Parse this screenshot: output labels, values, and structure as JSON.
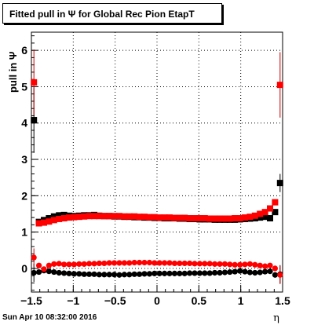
{
  "title": "Fitted pull in  Ψ  for Global Rec Pion EtapT",
  "timestamp": "Sun Apr 10 08:32:00 2016",
  "chart_data": {
    "type": "scatter",
    "xlabel": "η",
    "ylabel": "pull in  Ψ",
    "xlim": [
      -1.5,
      1.5
    ],
    "ylim": [
      -0.65,
      6.5
    ],
    "xticks": [
      "−1.5",
      "−1",
      "−0.5",
      "0",
      "0.5",
      "1",
      "1.5"
    ],
    "xtick_values": [
      -1.5,
      -1,
      -0.5,
      0,
      0.5,
      1,
      1.5
    ],
    "yticks": [
      "0",
      "1",
      "2",
      "3",
      "4",
      "5",
      "6"
    ],
    "ytick_values": [
      0,
      1,
      2,
      3,
      4,
      5,
      6
    ],
    "grid": true,
    "colors": {
      "black": "#000000",
      "red": "#ff0000",
      "error": "#cc0000"
    },
    "series": [
      {
        "marker": "square",
        "color": "#000000",
        "x": [
          -1.47,
          -1.41,
          -1.35,
          -1.29,
          -1.23,
          -1.17,
          -1.11,
          -1.05,
          -0.99,
          -0.93,
          -0.87,
          -0.81,
          -0.75,
          -0.69,
          -0.63,
          -0.57,
          -0.51,
          -0.45,
          -0.39,
          -0.33,
          -0.27,
          -0.21,
          -0.15,
          -0.09,
          -0.03,
          0.03,
          0.09,
          0.15,
          0.21,
          0.27,
          0.33,
          0.39,
          0.45,
          0.51,
          0.57,
          0.63,
          0.69,
          0.75,
          0.81,
          0.87,
          0.93,
          0.99,
          1.05,
          1.11,
          1.17,
          1.23,
          1.29,
          1.35,
          1.41,
          1.47
        ],
        "y": [
          4.08,
          1.28,
          1.33,
          1.38,
          1.43,
          1.46,
          1.47,
          1.45,
          1.44,
          1.45,
          1.46,
          1.46,
          1.47,
          1.45,
          1.44,
          1.44,
          1.43,
          1.43,
          1.42,
          1.42,
          1.41,
          1.41,
          1.4,
          1.4,
          1.39,
          1.39,
          1.38,
          1.38,
          1.38,
          1.37,
          1.37,
          1.36,
          1.36,
          1.35,
          1.35,
          1.35,
          1.34,
          1.34,
          1.34,
          1.34,
          1.34,
          1.35,
          1.36,
          1.37,
          1.38,
          1.4,
          1.42,
          1.38,
          1.55,
          2.35
        ]
      },
      {
        "marker": "square",
        "color": "#ff0000",
        "x": [
          -1.47,
          -1.41,
          -1.35,
          -1.29,
          -1.23,
          -1.17,
          -1.11,
          -1.05,
          -0.99,
          -0.93,
          -0.87,
          -0.81,
          -0.75,
          -0.69,
          -0.63,
          -0.57,
          -0.51,
          -0.45,
          -0.39,
          -0.33,
          -0.27,
          -0.21,
          -0.15,
          -0.09,
          -0.03,
          0.03,
          0.09,
          0.15,
          0.21,
          0.27,
          0.33,
          0.39,
          0.45,
          0.51,
          0.57,
          0.63,
          0.69,
          0.75,
          0.81,
          0.87,
          0.93,
          0.99,
          1.05,
          1.11,
          1.17,
          1.23,
          1.29,
          1.35,
          1.41,
          1.47
        ],
        "y": [
          5.12,
          1.24,
          1.26,
          1.29,
          1.33,
          1.36,
          1.38,
          1.4,
          1.41,
          1.42,
          1.43,
          1.44,
          1.44,
          1.44,
          1.44,
          1.44,
          1.44,
          1.44,
          1.43,
          1.43,
          1.43,
          1.42,
          1.42,
          1.41,
          1.41,
          1.4,
          1.4,
          1.4,
          1.39,
          1.39,
          1.39,
          1.38,
          1.38,
          1.38,
          1.38,
          1.37,
          1.37,
          1.37,
          1.37,
          1.37,
          1.38,
          1.38,
          1.4,
          1.42,
          1.45,
          1.5,
          1.55,
          1.65,
          1.82,
          5.05
        ]
      },
      {
        "marker": "circle",
        "color": "#000000",
        "x": [
          -1.47,
          -1.41,
          -1.35,
          -1.29,
          -1.23,
          -1.17,
          -1.11,
          -1.05,
          -0.99,
          -0.93,
          -0.87,
          -0.81,
          -0.75,
          -0.69,
          -0.63,
          -0.57,
          -0.51,
          -0.45,
          -0.39,
          -0.33,
          -0.27,
          -0.21,
          -0.15,
          -0.09,
          -0.03,
          0.03,
          0.09,
          0.15,
          0.21,
          0.27,
          0.33,
          0.39,
          0.45,
          0.51,
          0.57,
          0.63,
          0.69,
          0.75,
          0.81,
          0.87,
          0.93,
          0.99,
          1.05,
          1.11,
          1.17,
          1.23,
          1.29,
          1.35,
          1.41,
          1.47
        ],
        "y": [
          -0.12,
          -0.1,
          -0.06,
          -0.08,
          -0.1,
          -0.12,
          -0.13,
          -0.14,
          -0.15,
          -0.15,
          -0.16,
          -0.16,
          -0.16,
          -0.17,
          -0.17,
          -0.17,
          -0.17,
          -0.18,
          -0.17,
          -0.17,
          -0.16,
          -0.16,
          -0.15,
          -0.15,
          -0.14,
          -0.14,
          -0.14,
          -0.14,
          -0.14,
          -0.14,
          -0.14,
          -0.13,
          -0.13,
          -0.13,
          -0.13,
          -0.13,
          -0.12,
          -0.12,
          -0.11,
          -0.1,
          -0.09,
          -0.07,
          -0.09,
          -0.11,
          -0.12,
          -0.11,
          -0.09,
          -0.08,
          -0.18,
          -0.16
        ]
      },
      {
        "marker": "circle",
        "color": "#ff0000",
        "x": [
          -1.47,
          -1.41,
          -1.35,
          -1.29,
          -1.23,
          -1.17,
          -1.11,
          -1.05,
          -0.99,
          -0.93,
          -0.87,
          -0.81,
          -0.75,
          -0.69,
          -0.63,
          -0.57,
          -0.51,
          -0.45,
          -0.39,
          -0.33,
          -0.27,
          -0.21,
          -0.15,
          -0.09,
          -0.03,
          0.03,
          0.09,
          0.15,
          0.21,
          0.27,
          0.33,
          0.39,
          0.45,
          0.51,
          0.57,
          0.63,
          0.69,
          0.75,
          0.81,
          0.87,
          0.93,
          0.99,
          1.05,
          1.11,
          1.17,
          1.23,
          1.29,
          1.35,
          1.41,
          1.47
        ],
        "y": [
          0.3,
          0.08,
          -0.02,
          0.08,
          0.12,
          0.13,
          0.11,
          0.11,
          0.11,
          0.12,
          0.12,
          0.13,
          0.13,
          0.14,
          0.14,
          0.15,
          0.15,
          0.15,
          0.15,
          0.15,
          0.16,
          0.16,
          0.16,
          0.16,
          0.15,
          0.15,
          0.15,
          0.15,
          0.14,
          0.14,
          0.14,
          0.14,
          0.13,
          0.13,
          0.13,
          0.13,
          0.12,
          0.12,
          0.12,
          0.11,
          0.1,
          0.1,
          0.11,
          0.12,
          0.1,
          0.08,
          0.06,
          0.08,
          0.0,
          -0.18
        ]
      }
    ]
  }
}
